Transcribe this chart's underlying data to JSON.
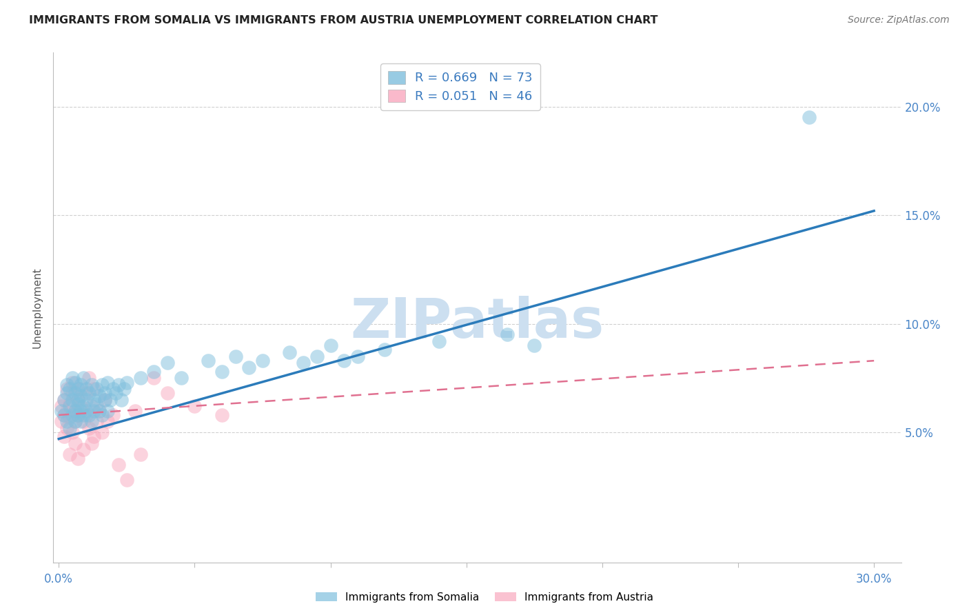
{
  "title": "IMMIGRANTS FROM SOMALIA VS IMMIGRANTS FROM AUSTRIA UNEMPLOYMENT CORRELATION CHART",
  "source": "Source: ZipAtlas.com",
  "ylabel_label": "Unemployment",
  "xlim": [
    -0.002,
    0.31
  ],
  "ylim": [
    -0.01,
    0.225
  ],
  "xticks": [
    0.0,
    0.05,
    0.1,
    0.15,
    0.2,
    0.25,
    0.3
  ],
  "yticks": [
    0.05,
    0.1,
    0.15,
    0.2
  ],
  "ytick_labels": [
    "5.0%",
    "10.0%",
    "15.0%",
    "20.0%"
  ],
  "xtick_labels_show": [
    "0.0%",
    "",
    "",
    "",
    "",
    "",
    "30.0%"
  ],
  "somalia_R": 0.669,
  "somalia_N": 73,
  "austria_R": 0.051,
  "austria_N": 46,
  "somalia_color": "#7fbfdd",
  "austria_color": "#f9a8be",
  "somalia_line_color": "#2b7bba",
  "austria_line_color": "#e07090",
  "watermark": "ZIPatlas",
  "watermark_color": "#ccdff0",
  "background_color": "#ffffff",
  "somalia_line_x": [
    0.0,
    0.3
  ],
  "somalia_line_y": [
    0.047,
    0.152
  ],
  "austria_line_x": [
    0.0,
    0.3
  ],
  "austria_line_y": [
    0.058,
    0.083
  ],
  "somalia_scatter_x": [
    0.001,
    0.002,
    0.002,
    0.003,
    0.003,
    0.003,
    0.004,
    0.004,
    0.004,
    0.005,
    0.005,
    0.005,
    0.006,
    0.006,
    0.006,
    0.006,
    0.007,
    0.007,
    0.007,
    0.007,
    0.008,
    0.008,
    0.008,
    0.008,
    0.009,
    0.009,
    0.009,
    0.01,
    0.01,
    0.01,
    0.011,
    0.011,
    0.012,
    0.012,
    0.013,
    0.013,
    0.014,
    0.014,
    0.015,
    0.015,
    0.016,
    0.016,
    0.017,
    0.017,
    0.018,
    0.018,
    0.019,
    0.02,
    0.021,
    0.022,
    0.023,
    0.024,
    0.025,
    0.03,
    0.035,
    0.04,
    0.045,
    0.055,
    0.06,
    0.065,
    0.07,
    0.075,
    0.085,
    0.09,
    0.095,
    0.1,
    0.105,
    0.11,
    0.12,
    0.14,
    0.165,
    0.175,
    0.276
  ],
  "somalia_scatter_y": [
    0.06,
    0.065,
    0.058,
    0.072,
    0.055,
    0.068,
    0.062,
    0.07,
    0.052,
    0.075,
    0.058,
    0.065,
    0.06,
    0.068,
    0.055,
    0.073,
    0.063,
    0.058,
    0.07,
    0.065,
    0.06,
    0.055,
    0.072,
    0.067,
    0.058,
    0.062,
    0.075,
    0.06,
    0.065,
    0.07,
    0.058,
    0.068,
    0.055,
    0.072,
    0.06,
    0.065,
    0.063,
    0.07,
    0.06,
    0.067,
    0.072,
    0.058,
    0.065,
    0.068,
    0.06,
    0.073,
    0.065,
    0.07,
    0.068,
    0.072,
    0.065,
    0.07,
    0.073,
    0.075,
    0.078,
    0.082,
    0.075,
    0.083,
    0.078,
    0.085,
    0.08,
    0.083,
    0.087,
    0.082,
    0.085,
    0.09,
    0.083,
    0.085,
    0.088,
    0.092,
    0.095,
    0.09,
    0.195
  ],
  "austria_scatter_x": [
    0.001,
    0.001,
    0.002,
    0.002,
    0.002,
    0.003,
    0.003,
    0.003,
    0.004,
    0.004,
    0.004,
    0.005,
    0.005,
    0.005,
    0.006,
    0.006,
    0.006,
    0.007,
    0.007,
    0.007,
    0.008,
    0.008,
    0.009,
    0.009,
    0.01,
    0.01,
    0.011,
    0.011,
    0.012,
    0.012,
    0.013,
    0.013,
    0.014,
    0.015,
    0.016,
    0.017,
    0.018,
    0.02,
    0.022,
    0.025,
    0.028,
    0.03,
    0.035,
    0.04,
    0.05,
    0.06
  ],
  "austria_scatter_y": [
    0.055,
    0.062,
    0.058,
    0.065,
    0.048,
    0.06,
    0.07,
    0.052,
    0.063,
    0.057,
    0.04,
    0.068,
    0.05,
    0.073,
    0.055,
    0.06,
    0.045,
    0.065,
    0.058,
    0.038,
    0.062,
    0.07,
    0.055,
    0.042,
    0.058,
    0.068,
    0.052,
    0.075,
    0.045,
    0.062,
    0.048,
    0.07,
    0.055,
    0.06,
    0.05,
    0.065,
    0.055,
    0.058,
    0.035,
    0.028,
    0.06,
    0.04,
    0.075,
    0.068,
    0.062,
    0.058
  ]
}
